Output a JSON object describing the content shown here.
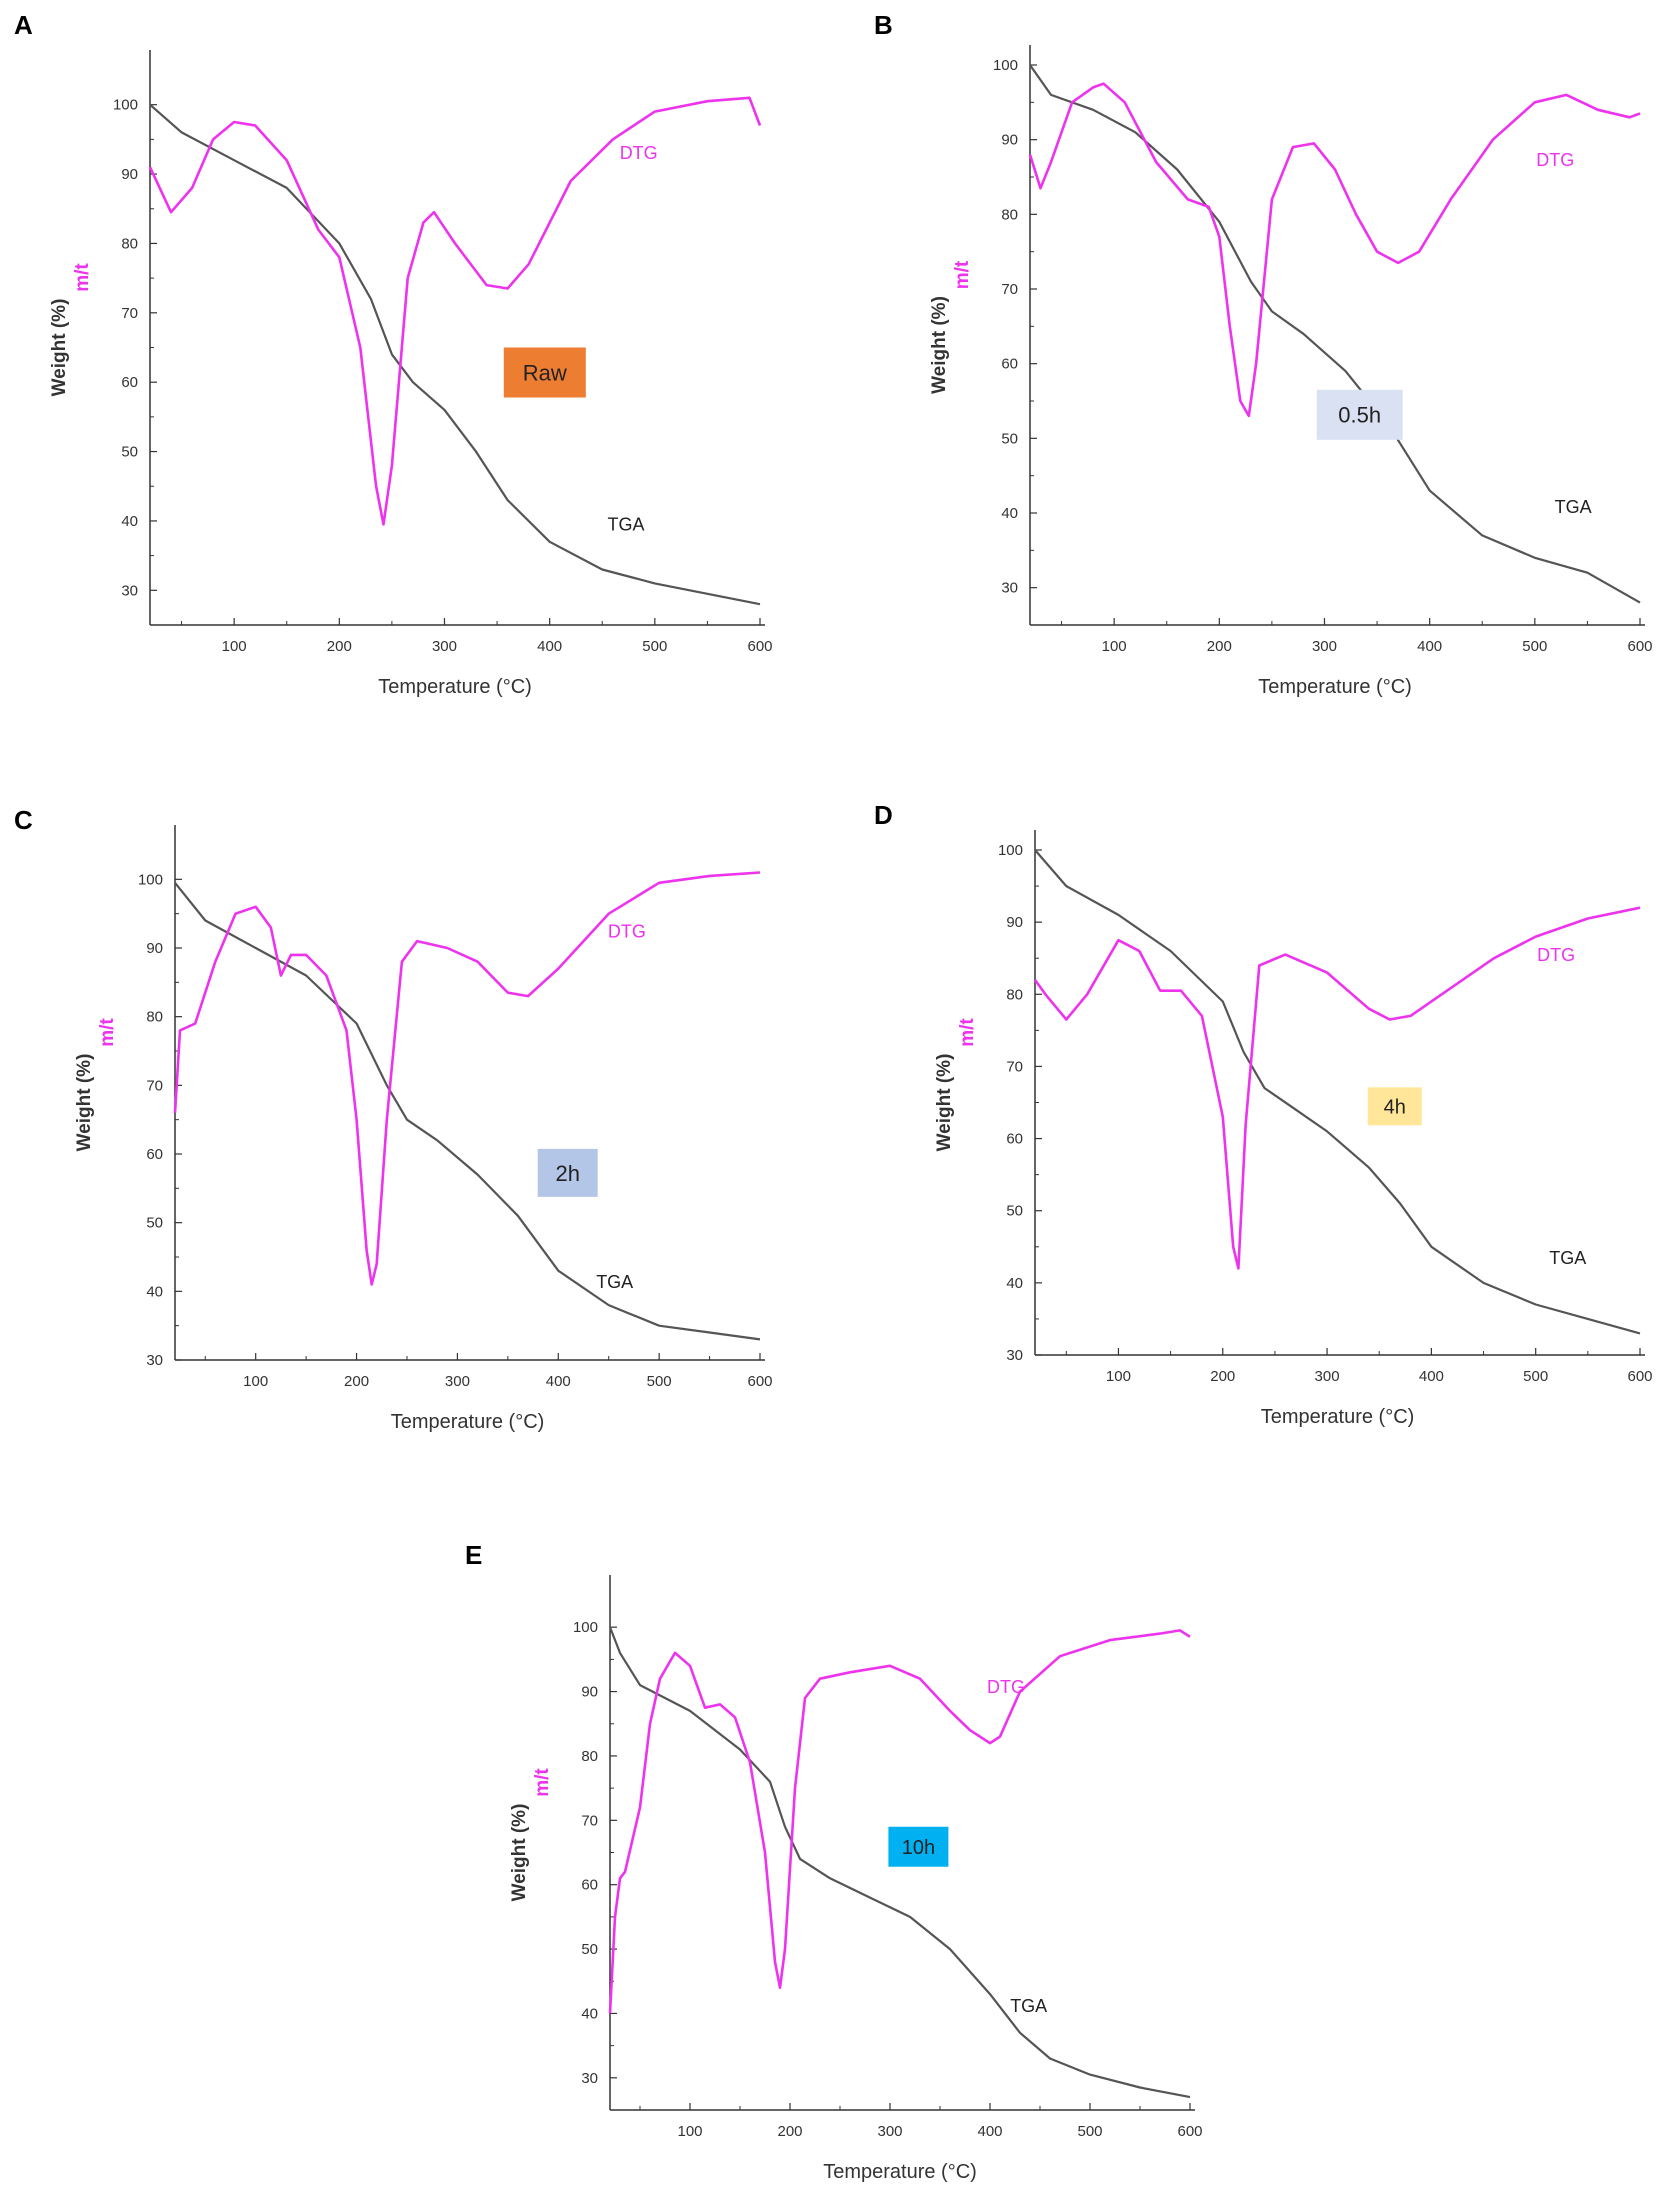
{
  "colors": {
    "tga": "#555555",
    "dtg": "#ee33ee",
    "axis": "#333333"
  },
  "chart_data": [
    {
      "panel": "A",
      "type": "line",
      "xlabel": "Temperature (°C)",
      "ylabel": "Weight (%)",
      "ylabel2": "m/t",
      "xlim": [
        20,
        600
      ],
      "ylim": [
        25,
        105
      ],
      "xticks": [
        100,
        200,
        300,
        400,
        500,
        600
      ],
      "yticks": [
        30,
        40,
        50,
        60,
        70,
        80,
        90,
        100
      ],
      "badge": {
        "text": "Raw",
        "bg": "#ed7d31",
        "fg": "#222222"
      },
      "series": [
        {
          "name": "TGA",
          "color": "#555555",
          "x": [
            20,
            50,
            100,
            150,
            200,
            230,
            250,
            270,
            300,
            330,
            360,
            400,
            450,
            500,
            550,
            600
          ],
          "y": [
            100,
            96,
            92,
            88,
            80,
            72,
            64,
            60,
            56,
            50,
            43,
            37,
            33,
            31,
            29.5,
            28
          ]
        },
        {
          "name": "DTG",
          "color": "#ee33ee",
          "x": [
            20,
            40,
            60,
            80,
            100,
            120,
            150,
            180,
            200,
            220,
            235,
            242,
            250,
            265,
            280,
            290,
            310,
            340,
            360,
            380,
            420,
            460,
            500,
            550,
            590,
            595,
            600
          ],
          "y": [
            91,
            84.5,
            88,
            95,
            97.5,
            97,
            92,
            82,
            78,
            65,
            45,
            39.5,
            48,
            75,
            83,
            84.5,
            80,
            74,
            73.5,
            77,
            89,
            95,
            99,
            100.5,
            101,
            99,
            97
          ]
        }
      ],
      "labels": [
        {
          "text": "DTG",
          "series": "DTG"
        },
        {
          "text": "TGA",
          "series": "TGA"
        }
      ]
    },
    {
      "panel": "B",
      "type": "line",
      "xlabel": "Temperature (°C)",
      "ylabel": "Weight (%)",
      "ylabel2": "m/t",
      "xlim": [
        20,
        600
      ],
      "ylim": [
        25,
        100
      ],
      "xticks": [
        100,
        200,
        300,
        400,
        500,
        600
      ],
      "yticks": [
        30,
        40,
        50,
        60,
        70,
        80,
        90,
        100
      ],
      "badge": {
        "text": "0.5h",
        "bg": "#d9e1f2",
        "fg": "#222222"
      },
      "series": [
        {
          "name": "TGA",
          "color": "#555555",
          "x": [
            20,
            40,
            80,
            120,
            160,
            200,
            230,
            250,
            280,
            320,
            360,
            400,
            450,
            500,
            550,
            600
          ],
          "y": [
            100,
            96,
            94,
            91,
            86,
            79,
            71,
            67,
            64,
            59,
            52,
            43,
            37,
            34,
            32,
            28
          ]
        },
        {
          "name": "DTG",
          "color": "#ee33ee",
          "x": [
            20,
            30,
            40,
            60,
            80,
            90,
            110,
            140,
            170,
            190,
            200,
            210,
            220,
            228,
            235,
            250,
            270,
            290,
            310,
            330,
            350,
            370,
            390,
            420,
            460,
            500,
            530,
            560,
            590,
            600
          ],
          "y": [
            88,
            83.5,
            87,
            95,
            97,
            97.5,
            95,
            87,
            82,
            81,
            77,
            65,
            55,
            53,
            60,
            82,
            89,
            89.5,
            86,
            80,
            75,
            73.5,
            75,
            82,
            90,
            95,
            96,
            94,
            93,
            93.5
          ]
        }
      ],
      "labels": [
        {
          "text": "DTG",
          "series": "DTG"
        },
        {
          "text": "TGA",
          "series": "TGA"
        }
      ]
    },
    {
      "panel": "C",
      "type": "line",
      "xlabel": "Temperature (°C)",
      "ylabel": "Weight (%)",
      "ylabel2": "m/t",
      "xlim": [
        20,
        600
      ],
      "ylim": [
        30,
        105
      ],
      "xticks": [
        100,
        200,
        300,
        400,
        500,
        600
      ],
      "yticks": [
        30,
        40,
        50,
        60,
        70,
        80,
        90,
        100
      ],
      "badge": {
        "text": "2h",
        "bg": "#b4c6e7",
        "fg": "#222222"
      },
      "series": [
        {
          "name": "TGA",
          "color": "#555555",
          "x": [
            20,
            50,
            100,
            150,
            200,
            230,
            250,
            280,
            320,
            360,
            400,
            450,
            500,
            550,
            600
          ],
          "y": [
            99.5,
            94,
            90,
            86,
            79,
            70,
            65,
            62,
            57,
            51,
            43,
            38,
            35,
            34,
            33
          ]
        },
        {
          "name": "DTG",
          "color": "#ee33ee",
          "x": [
            20,
            25,
            40,
            60,
            80,
            100,
            115,
            125,
            135,
            150,
            170,
            190,
            200,
            210,
            215,
            220,
            230,
            245,
            260,
            290,
            320,
            350,
            370,
            400,
            450,
            500,
            550,
            600
          ],
          "y": [
            66,
            78,
            79,
            88,
            95,
            96,
            93,
            86,
            89,
            89,
            86,
            78,
            65,
            46,
            41,
            44,
            65,
            88,
            91,
            90,
            88,
            83.5,
            83,
            87,
            95,
            99.5,
            100.5,
            101
          ]
        }
      ],
      "labels": [
        {
          "text": "DTG",
          "series": "DTG"
        },
        {
          "text": "TGA",
          "series": "TGA"
        }
      ]
    },
    {
      "panel": "D",
      "type": "line",
      "xlabel": "Temperature (°C)",
      "ylabel": "Weight (%)",
      "ylabel2": "m/t",
      "xlim": [
        20,
        600
      ],
      "ylim": [
        30,
        100
      ],
      "xticks": [
        100,
        200,
        300,
        400,
        500,
        600
      ],
      "yticks": [
        30,
        40,
        50,
        60,
        70,
        80,
        90,
        100
      ],
      "badge": {
        "text": "4h",
        "bg": "#ffe699",
        "fg": "#222222"
      },
      "series": [
        {
          "name": "TGA",
          "color": "#555555",
          "x": [
            20,
            50,
            100,
            150,
            200,
            220,
            240,
            270,
            300,
            340,
            370,
            400,
            450,
            500,
            550,
            600
          ],
          "y": [
            100,
            95,
            91,
            86,
            79,
            72,
            67,
            64,
            61,
            56,
            51,
            45,
            40,
            37,
            35,
            33
          ]
        },
        {
          "name": "DTG",
          "color": "#ee33ee",
          "x": [
            20,
            30,
            50,
            70,
            100,
            120,
            140,
            160,
            180,
            200,
            210,
            215,
            222,
            235,
            260,
            300,
            340,
            360,
            380,
            420,
            460,
            500,
            550,
            600
          ],
          "y": [
            82,
            80,
            76.5,
            80,
            87.5,
            86,
            80.5,
            80.5,
            77,
            63,
            45,
            42,
            62,
            84,
            85.5,
            83,
            78,
            76.5,
            77,
            81,
            85,
            88,
            90.5,
            92
          ]
        }
      ],
      "labels": [
        {
          "text": "DTG",
          "series": "DTG"
        },
        {
          "text": "TGA",
          "series": "TGA"
        }
      ]
    },
    {
      "panel": "E",
      "type": "line",
      "xlabel": "Temperature (°C)",
      "ylabel": "Weight (%)",
      "ylabel2": "m/t",
      "xlim": [
        20,
        600
      ],
      "ylim": [
        25,
        105
      ],
      "xticks": [
        100,
        200,
        300,
        400,
        500,
        600
      ],
      "yticks": [
        30,
        40,
        50,
        60,
        70,
        80,
        90,
        100
      ],
      "badge": {
        "text": "10h",
        "bg": "#00b0f0",
        "fg": "#222222"
      },
      "series": [
        {
          "name": "TGA",
          "color": "#555555",
          "x": [
            20,
            30,
            50,
            100,
            150,
            180,
            195,
            210,
            240,
            280,
            320,
            360,
            400,
            430,
            460,
            500,
            550,
            600
          ],
          "y": [
            100,
            96,
            91,
            87,
            81,
            76,
            69,
            64,
            61,
            58,
            55,
            50,
            43,
            37,
            33,
            30.5,
            28.5,
            27
          ]
        },
        {
          "name": "DTG",
          "color": "#ee33ee",
          "x": [
            20,
            25,
            30,
            35,
            50,
            60,
            70,
            85,
            100,
            115,
            130,
            145,
            160,
            175,
            185,
            190,
            195,
            205,
            215,
            230,
            260,
            300,
            330,
            360,
            380,
            400,
            410,
            430,
            470,
            520,
            570,
            590,
            600
          ],
          "y": [
            40,
            55,
            61,
            62,
            72,
            85,
            92,
            96,
            94,
            87.5,
            88,
            86,
            79,
            65,
            48,
            44,
            50,
            75,
            89,
            92,
            93,
            94,
            92,
            87,
            84,
            82,
            83,
            90,
            95.5,
            98,
            99,
            99.5,
            98.5
          ]
        }
      ],
      "labels": [
        {
          "text": "DTG",
          "series": "DTG"
        },
        {
          "text": "TGA",
          "series": "TGA"
        }
      ]
    }
  ]
}
